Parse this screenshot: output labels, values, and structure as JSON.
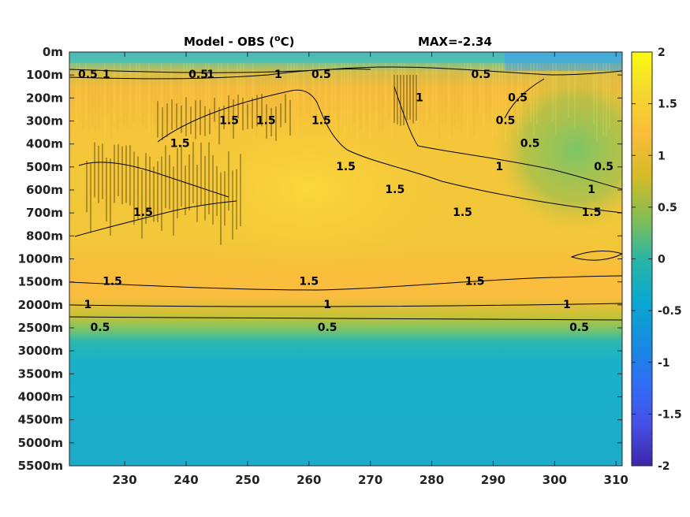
{
  "chart_data": {
    "type": "heatmap",
    "title": "Model - OBS (",
    "title_unit_sup": "o",
    "title_unit_tail": "C)",
    "max_label": "MAX=-2.34",
    "colormap": "parula",
    "x_ticks": [
      230,
      240,
      250,
      260,
      270,
      280,
      290,
      300,
      310
    ],
    "xlim": [
      221,
      311
    ],
    "y_ticks": [
      "0m",
      "100m",
      "200m",
      "300m",
      "400m",
      "500m",
      "600m",
      "700m",
      "800m",
      "1000m",
      "1500m",
      "2000m",
      "2500m",
      "3000m",
      "3500m",
      "4000m",
      "4500m",
      "5000m",
      "5500m"
    ],
    "colorbar_ticks": [
      "2",
      "1.5",
      "1",
      "0.5",
      "0",
      "-0.5",
      "-1",
      "-1.5",
      "-2"
    ],
    "clim": [
      -2,
      2
    ],
    "depth_profile": [
      {
        "depth": "0m",
        "value": -0.3
      },
      {
        "depth": "100m",
        "value": 0.8
      },
      {
        "depth": "200m",
        "value": 1.5
      },
      {
        "depth": "400m",
        "value": 1.7
      },
      {
        "depth": "800m",
        "value": 1.75
      },
      {
        "depth": "1000m",
        "value": 1.7
      },
      {
        "depth": "1500m",
        "value": 1.4
      },
      {
        "depth": "2000m",
        "value": 1.0
      },
      {
        "depth": "2500m",
        "value": 0.5
      },
      {
        "depth": "3000m",
        "value": -0.25
      },
      {
        "depth": "5500m",
        "value": -0.35
      }
    ],
    "contour_labels": [
      {
        "text": "0.5",
        "x": 224,
        "depth": "100m"
      },
      {
        "text": "1",
        "x": 227,
        "depth": "100m"
      },
      {
        "text": "0.5",
        "x": 242,
        "depth": "100m"
      },
      {
        "text": "1",
        "x": 244,
        "depth": "100m"
      },
      {
        "text": "1",
        "x": 255,
        "depth": "100m"
      },
      {
        "text": "0.5",
        "x": 262,
        "depth": "100m"
      },
      {
        "text": "0.5",
        "x": 288,
        "depth": "100m"
      },
      {
        "text": "1.5",
        "x": 262,
        "depth": "300m"
      },
      {
        "text": "1.5",
        "x": 266,
        "depth": "500m"
      },
      {
        "text": "1",
        "x": 278,
        "depth": "200m"
      },
      {
        "text": "0.5",
        "x": 294,
        "depth": "200m"
      },
      {
        "text": "0.5",
        "x": 292,
        "depth": "300m"
      },
      {
        "text": "0.5",
        "x": 296,
        "depth": "400m"
      },
      {
        "text": "1",
        "x": 291,
        "depth": "500m"
      },
      {
        "text": "0.5",
        "x": 308,
        "depth": "500m"
      },
      {
        "text": "1.5",
        "x": 274,
        "depth": "600m"
      },
      {
        "text": "1",
        "x": 306,
        "depth": "600m"
      },
      {
        "text": "1.5",
        "x": 285,
        "depth": "700m"
      },
      {
        "text": "1.5",
        "x": 306,
        "depth": "700m"
      },
      {
        "text": "1.5",
        "x": 228,
        "depth": "1500m"
      },
      {
        "text": "1.5",
        "x": 260,
        "depth": "1500m"
      },
      {
        "text": "1.5",
        "x": 287,
        "depth": "1500m"
      },
      {
        "text": "1",
        "x": 224,
        "depth": "2000m"
      },
      {
        "text": "1",
        "x": 263,
        "depth": "2000m"
      },
      {
        "text": "1",
        "x": 302,
        "depth": "2000m"
      },
      {
        "text": "0.5",
        "x": 226,
        "depth": "2500m"
      },
      {
        "text": "0.5",
        "x": 263,
        "depth": "2500m"
      },
      {
        "text": "0.5",
        "x": 304,
        "depth": "2500m"
      },
      {
        "text": "1.5",
        "x": 233,
        "depth": "700m"
      },
      {
        "text": "1.5",
        "x": 239,
        "depth": "400m"
      },
      {
        "text": "1.5",
        "x": 247,
        "depth": "300m"
      },
      {
        "text": "1.5",
        "x": 253,
        "depth": "300m"
      }
    ]
  }
}
